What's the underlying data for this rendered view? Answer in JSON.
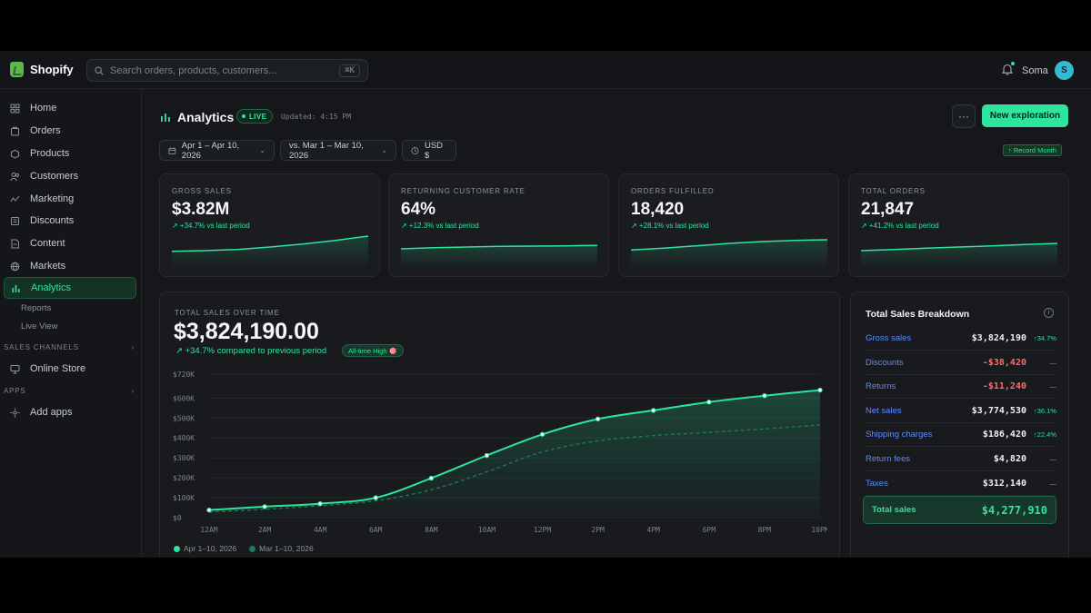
{
  "app": {
    "name": "Shopify"
  },
  "search": {
    "placeholder": "Search orders, products, customers...",
    "shortcut": "⌘K"
  },
  "user": {
    "name": "Soma",
    "initial": "S"
  },
  "sidebar": {
    "items": [
      {
        "label": "Home",
        "icon": "home-icon"
      },
      {
        "label": "Orders",
        "icon": "orders-icon"
      },
      {
        "label": "Products",
        "icon": "products-icon"
      },
      {
        "label": "Customers",
        "icon": "customers-icon"
      },
      {
        "label": "Marketing",
        "icon": "marketing-icon"
      },
      {
        "label": "Discounts",
        "icon": "discounts-icon"
      },
      {
        "label": "Content",
        "icon": "content-icon"
      },
      {
        "label": "Markets",
        "icon": "globe-icon"
      },
      {
        "label": "Analytics",
        "icon": "bar-chart-icon",
        "active": true
      }
    ],
    "sub_items": [
      "Reports",
      "Live View"
    ],
    "sales_channels_label": "SALES CHANNELS",
    "online_store": "Online Store",
    "apps_label": "APPS",
    "add_apps": "Add apps"
  },
  "header": {
    "title": "Analytics",
    "live": "LIVE",
    "updated": "Updated: 4:15 PM",
    "more": "···",
    "new_button": "New exploration",
    "record_badge": "↑ Record Month"
  },
  "filters": {
    "date_range": "Apr 1 – Apr 10, 2026",
    "compare_range": "vs. Mar 1 – Mar 10, 2026",
    "currency": "USD $"
  },
  "kpis": [
    {
      "label": "GROSS SALES",
      "value": "$3.82M",
      "delta": "↗ +34.7% vs last period",
      "spark": [
        2,
        3,
        5,
        9,
        14,
        20,
        27
      ]
    },
    {
      "label": "RETURNING CUSTOMER RATE",
      "value": "64%",
      "delta": "↗ +12.3% vs last period",
      "spark": [
        6,
        8,
        9,
        10,
        10.5,
        11,
        11.5
      ]
    },
    {
      "label": "ORDERS FULFILLED",
      "value": "18,420",
      "delta": "↗ +28.1% vs last period",
      "spark": [
        4,
        7,
        11,
        15,
        18,
        20,
        21
      ]
    },
    {
      "label": "TOTAL ORDERS",
      "value": "21,847",
      "delta": "↗ +41.2% vs last period",
      "spark": [
        3,
        5,
        7,
        9,
        11,
        13,
        15
      ]
    }
  ],
  "sales": {
    "label": "TOTAL SALES OVER TIME",
    "value": "$3,824,190.00",
    "delta": "↗ +34.7% compared to previous period",
    "badge": "All-time High 🎯"
  },
  "colors": {
    "accent": "#2ee59d",
    "negative": "#ff6b6b",
    "link": "#5b8cff"
  },
  "chart_data": {
    "type": "area",
    "categories": [
      "12AM",
      "2AM",
      "4AM",
      "6AM",
      "8AM",
      "10AM",
      "12PM",
      "2PM",
      "4PM",
      "6PM",
      "8PM",
      "10PM"
    ],
    "y_ticks": [
      "$0",
      "$100K",
      "$200K",
      "$300K",
      "$400K",
      "$500K",
      "$600K",
      "$720K"
    ],
    "y_tick_values": [
      0,
      100000,
      200000,
      300000,
      400000,
      500000,
      600000,
      720000
    ],
    "ylim": [
      0,
      720000
    ],
    "series": [
      {
        "name": "Apr 1–10, 2026",
        "values": [
          38000,
          55000,
          70000,
          100000,
          198000,
          312000,
          418000,
          495000,
          538000,
          580000,
          612000,
          640000
        ],
        "color": "#2ee59d"
      },
      {
        "name": "Mar 1–10, 2026",
        "values": [
          28000,
          42000,
          60000,
          85000,
          140000,
          230000,
          330000,
          385000,
          412000,
          428000,
          445000,
          465000
        ],
        "color": "#1f7a57"
      }
    ]
  },
  "breakdown": {
    "title": "Total Sales Breakdown",
    "info": "i",
    "rows": [
      {
        "name": "Gross sales",
        "value": "$3,824,190",
        "change": "↑34.7%",
        "negative": false
      },
      {
        "name": "Discounts",
        "value": "-$38,420",
        "change": "—",
        "negative": true
      },
      {
        "name": "Returns",
        "value": "-$11,240",
        "change": "—",
        "negative": true
      },
      {
        "name": "Net sales",
        "value": "$3,774,530",
        "change": "↑36.1%",
        "negative": false
      },
      {
        "name": "Shipping charges",
        "value": "$186,420",
        "change": "↑22.4%",
        "negative": false
      },
      {
        "name": "Return fees",
        "value": "$4,820",
        "change": "—",
        "negative": false
      },
      {
        "name": "Taxes",
        "value": "$312,140",
        "change": "—",
        "negative": false
      }
    ],
    "total_name": "Total sales",
    "total_value": "$4,277,910"
  }
}
